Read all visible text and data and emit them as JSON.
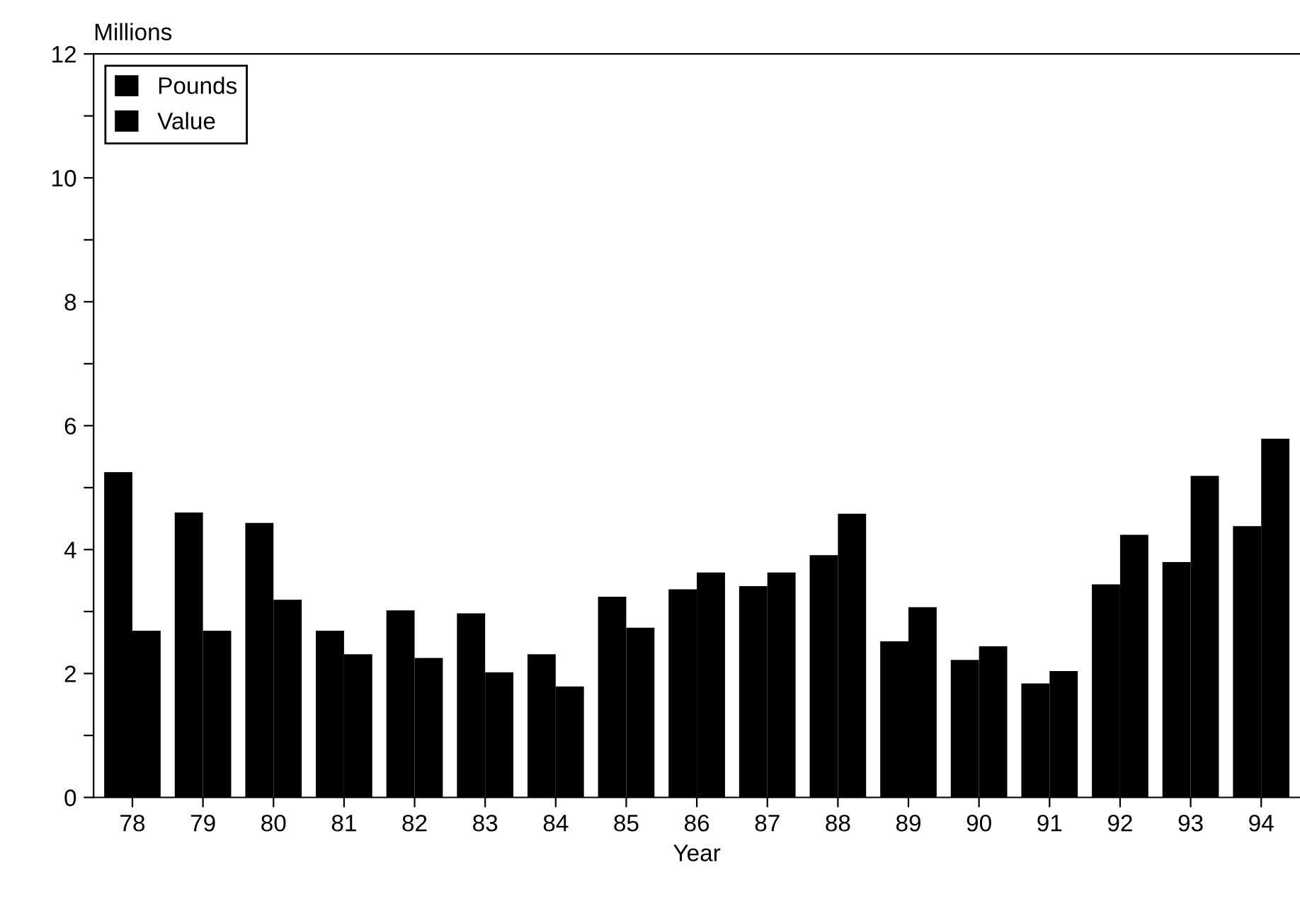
{
  "chart_data": {
    "type": "bar",
    "ylabel": "Millions",
    "xlabel": "Year",
    "categories": [
      "78",
      "79",
      "80",
      "81",
      "82",
      "83",
      "84",
      "85",
      "86",
      "87",
      "88",
      "89",
      "90",
      "91",
      "92",
      "93",
      "94"
    ],
    "series": [
      {
        "name": "Pounds",
        "color": "#000000",
        "values": [
          5.25,
          4.6,
          4.43,
          2.69,
          3.02,
          2.97,
          2.31,
          3.24,
          3.36,
          3.41,
          3.91,
          2.52,
          2.22,
          1.84,
          3.44,
          3.8,
          4.38
        ]
      },
      {
        "name": "Value",
        "color": "#000000",
        "values": [
          2.69,
          2.69,
          3.19,
          2.31,
          2.25,
          2.02,
          1.79,
          2.74,
          3.63,
          3.63,
          4.58,
          3.07,
          2.44,
          2.04,
          4.24,
          5.19,
          5.79
        ]
      }
    ],
    "ylim": [
      0,
      12
    ],
    "yticks": [
      0,
      {
        "value": 1,
        "label": null
      },
      2,
      {
        "value": 3,
        "label": null
      },
      4,
      {
        "value": 5,
        "label": null
      },
      6,
      {
        "value": 7,
        "label": null
      },
      8,
      {
        "value": 9,
        "label": null
      },
      10,
      {
        "value": 11,
        "label": null
      },
      12
    ],
    "grid": false,
    "legend": "top left"
  }
}
